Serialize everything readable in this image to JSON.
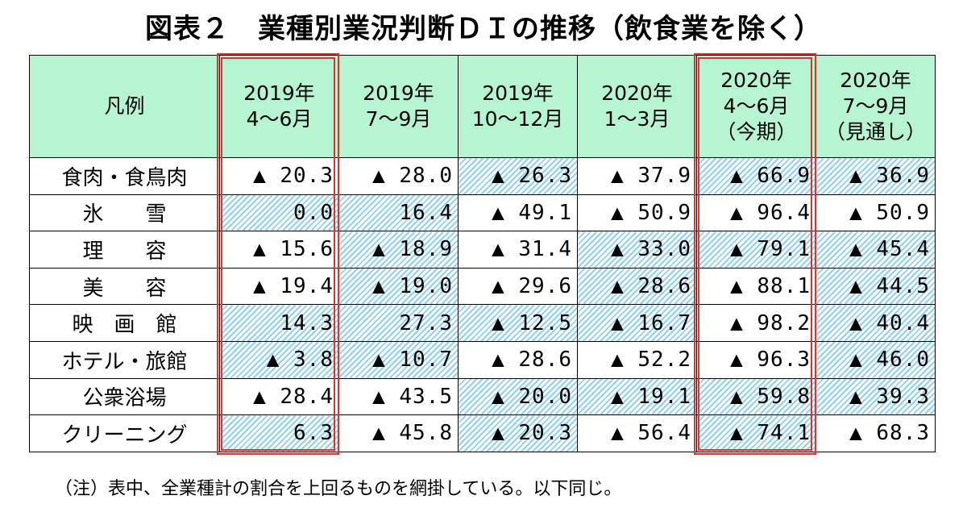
{
  "title": "図表２　業種別業況判断ＤＩの推移（飲食業を除く）",
  "header": {
    "legend": "凡例",
    "columns": [
      {
        "line1": "2019年",
        "line2": "4～6月",
        "line3": ""
      },
      {
        "line1": "2019年",
        "line2": "7～9月",
        "line3": ""
      },
      {
        "line1": "2019年",
        "line2": "10～12月",
        "line3": ""
      },
      {
        "line1": "2020年",
        "line2": "1～3月",
        "line3": ""
      },
      {
        "line1": "2020年",
        "line2": "4～6月",
        "line3": "（今期）"
      },
      {
        "line1": "2020年",
        "line2": "7～9月",
        "line3": "（見通し）"
      }
    ]
  },
  "rows": [
    {
      "name": "食肉・食鳥肉",
      "values": [
        "▲ 20.3",
        "▲ 28.0",
        "▲ 26.3",
        "▲ 37.9",
        "▲ 66.9",
        "▲ 36.9"
      ],
      "hatched": [
        false,
        false,
        true,
        false,
        true,
        true
      ]
    },
    {
      "name": "氷　　雪",
      "values": [
        "0.0",
        "16.4",
        "▲ 49.1",
        "▲ 50.9",
        "▲ 96.4",
        "▲ 50.9"
      ],
      "hatched": [
        true,
        true,
        false,
        false,
        false,
        false
      ]
    },
    {
      "name": "理　　容",
      "values": [
        "▲ 15.6",
        "▲ 18.9",
        "▲ 31.4",
        "▲ 33.0",
        "▲ 79.1",
        "▲ 45.4"
      ],
      "hatched": [
        false,
        true,
        false,
        true,
        true,
        true
      ]
    },
    {
      "name": "美　　容",
      "values": [
        "▲ 19.4",
        "▲ 19.0",
        "▲ 29.6",
        "▲ 28.6",
        "▲ 88.1",
        "▲ 44.5"
      ],
      "hatched": [
        false,
        true,
        false,
        true,
        false,
        true
      ]
    },
    {
      "name": "映　画　館",
      "values": [
        "14.3",
        "27.3",
        "▲ 12.5",
        "▲ 16.7",
        "▲ 98.2",
        "▲ 40.4"
      ],
      "hatched": [
        true,
        true,
        true,
        true,
        false,
        true
      ]
    },
    {
      "name": "ホテル・旅館",
      "values": [
        "▲ 3.8",
        "▲ 10.7",
        "▲ 28.6",
        "▲ 52.2",
        "▲ 96.3",
        "▲ 46.0"
      ],
      "hatched": [
        true,
        true,
        false,
        false,
        false,
        true
      ]
    },
    {
      "name": "公衆浴場",
      "values": [
        "▲ 28.4",
        "▲ 43.5",
        "▲ 20.0",
        "▲ 19.1",
        "▲ 59.8",
        "▲ 39.3"
      ],
      "hatched": [
        false,
        false,
        true,
        true,
        true,
        true
      ]
    },
    {
      "name": "クリーニング",
      "values": [
        "6.3",
        "▲ 45.8",
        "▲ 20.3",
        "▲ 56.4",
        "▲ 74.1",
        "▲ 68.3"
      ],
      "hatched": [
        true,
        false,
        true,
        false,
        true,
        false
      ]
    }
  ],
  "note": "（注）表中、全業種計の割合を上回るものを網掛している。以下同じ。",
  "colors": {
    "header_bg": "#b6f5d2",
    "hatch": "#8fd0ee",
    "highlight": "#e0312d"
  }
}
